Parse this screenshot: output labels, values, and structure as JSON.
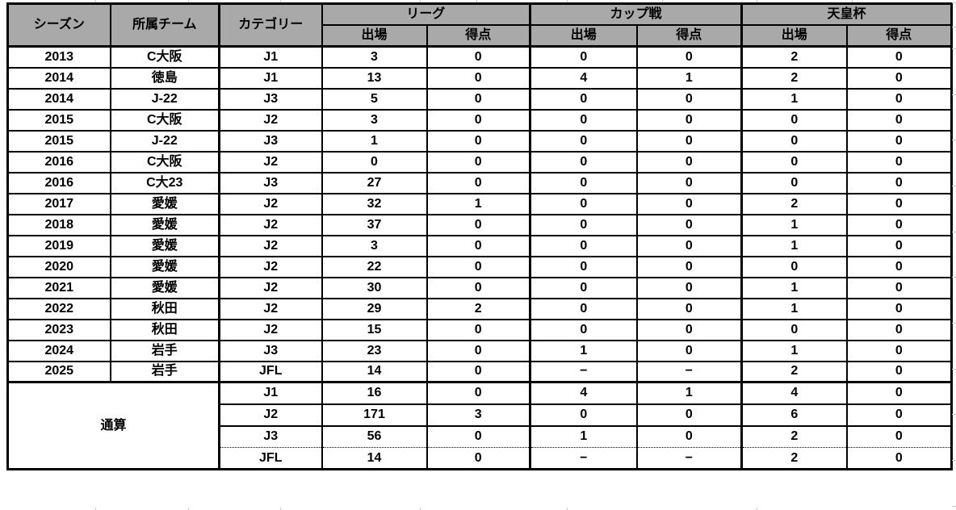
{
  "chart_data": {
    "type": "table",
    "header": {
      "season": "シーズン",
      "team": "所属チーム",
      "category": "カテゴリー",
      "groups": [
        {
          "label": "リーグ",
          "subcolumns": [
            "出場",
            "得点"
          ]
        },
        {
          "label": "カップ戦",
          "subcolumns": [
            "出場",
            "得点"
          ]
        },
        {
          "label": "天皇杯",
          "subcolumns": [
            "出場",
            "得点"
          ]
        }
      ]
    },
    "rows": [
      [
        "2013",
        "C大阪",
        "J1",
        "3",
        "0",
        "0",
        "0",
        "2",
        "0"
      ],
      [
        "2014",
        "徳島",
        "J1",
        "13",
        "0",
        "4",
        "1",
        "2",
        "0"
      ],
      [
        "2014",
        "J-22",
        "J3",
        "5",
        "0",
        "0",
        "0",
        "1",
        "0"
      ],
      [
        "2015",
        "C大阪",
        "J2",
        "3",
        "0",
        "0",
        "0",
        "0",
        "0"
      ],
      [
        "2015",
        "J-22",
        "J3",
        "1",
        "0",
        "0",
        "0",
        "0",
        "0"
      ],
      [
        "2016",
        "C大阪",
        "J2",
        "0",
        "0",
        "0",
        "0",
        "0",
        "0"
      ],
      [
        "2016",
        "C大23",
        "J3",
        "27",
        "0",
        "0",
        "0",
        "0",
        "0"
      ],
      [
        "2017",
        "愛媛",
        "J2",
        "32",
        "1",
        "0",
        "0",
        "2",
        "0"
      ],
      [
        "2018",
        "愛媛",
        "J2",
        "37",
        "0",
        "0",
        "0",
        "1",
        "0"
      ],
      [
        "2019",
        "愛媛",
        "J2",
        "3",
        "0",
        "0",
        "0",
        "1",
        "0"
      ],
      [
        "2020",
        "愛媛",
        "J2",
        "22",
        "0",
        "0",
        "0",
        "0",
        "0"
      ],
      [
        "2021",
        "愛媛",
        "J2",
        "30",
        "0",
        "0",
        "0",
        "1",
        "0"
      ],
      [
        "2022",
        "秋田",
        "J2",
        "29",
        "2",
        "0",
        "0",
        "1",
        "0"
      ],
      [
        "2023",
        "秋田",
        "J2",
        "15",
        "0",
        "0",
        "0",
        "0",
        "0"
      ],
      [
        "2024",
        "岩手",
        "J3",
        "23",
        "0",
        "1",
        "0",
        "1",
        "0"
      ],
      [
        "2025",
        "岩手",
        "JFL",
        "14",
        "0",
        "−",
        "−",
        "2",
        "0"
      ]
    ],
    "totals": {
      "label": "通算",
      "rows": [
        [
          "J1",
          "16",
          "0",
          "4",
          "1",
          "4",
          "0"
        ],
        [
          "J2",
          "171",
          "3",
          "0",
          "0",
          "6",
          "0"
        ],
        [
          "J3",
          "56",
          "0",
          "1",
          "0",
          "2",
          "0"
        ],
        [
          "JFL",
          "14",
          "0",
          "−",
          "−",
          "2",
          "0"
        ]
      ]
    }
  },
  "colors": {
    "header_bg": "#a9a9a9",
    "border": "#000000",
    "gridline": "#c9c9c9",
    "background": "#ffffff",
    "text": "#000000"
  }
}
